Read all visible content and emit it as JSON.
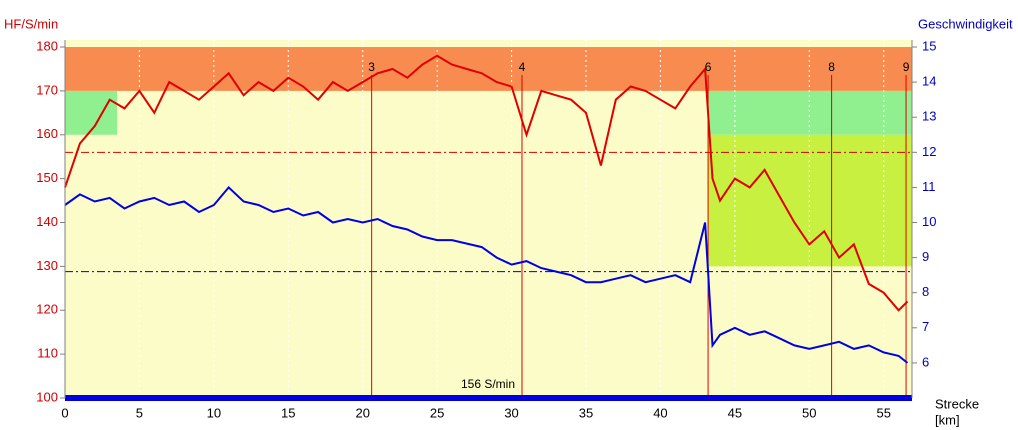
{
  "chart_data": {
    "type": "line",
    "ylabel": "HF/S/min",
    "y2label": "Geschwindigkeit",
    "xlabel": "Strecke",
    "xunit": "[km]",
    "xlim": [
      0,
      56.9
    ],
    "ylim": [
      100,
      181.6
    ],
    "y2lim": [
      5,
      15.2
    ],
    "xticks": [
      0,
      5,
      10,
      15,
      20,
      25,
      30,
      35,
      40,
      45,
      50,
      55
    ],
    "yticks": [
      100,
      110,
      120,
      130,
      140,
      150,
      160,
      170,
      180
    ],
    "y2ticks": [
      6,
      7,
      8,
      9,
      10,
      11,
      12,
      13,
      14,
      15
    ],
    "grid": true,
    "x": [
      0,
      1,
      2,
      3,
      4,
      5,
      6,
      7,
      8,
      9,
      10,
      11,
      12,
      13,
      14,
      15,
      16,
      17,
      18,
      19,
      20,
      21,
      22,
      23,
      24,
      25,
      26,
      27,
      28,
      29,
      30,
      31,
      32,
      33,
      34,
      35,
      36,
      37,
      38,
      39,
      40,
      41,
      42,
      43,
      43.5,
      44,
      45,
      46,
      47,
      48,
      49,
      50,
      51,
      52,
      53,
      54,
      55,
      56,
      56.6
    ],
    "series": [
      {
        "name": "HF",
        "color": "#e00000",
        "axis": "y",
        "values": [
          148,
          158,
          162,
          168,
          166,
          170,
          165,
          172,
          170,
          168,
          171,
          174,
          169,
          172,
          170,
          173,
          171,
          168,
          172,
          170,
          172,
          174,
          175,
          173,
          176,
          178,
          176,
          175,
          174,
          172,
          171,
          160,
          170,
          169,
          168,
          165,
          153,
          168,
          171,
          170,
          168,
          166,
          171,
          175,
          150,
          145,
          150,
          148,
          152,
          146,
          140,
          135,
          138,
          132,
          135,
          126,
          124,
          120,
          122
        ]
      },
      {
        "name": "Geschwindigkeit",
        "color": "#0000e0",
        "axis": "y2",
        "values": [
          10.5,
          10.8,
          10.6,
          10.7,
          10.4,
          10.6,
          10.7,
          10.5,
          10.6,
          10.3,
          10.5,
          11.0,
          10.6,
          10.5,
          10.3,
          10.4,
          10.2,
          10.3,
          10.0,
          10.1,
          10.0,
          10.1,
          9.9,
          9.8,
          9.6,
          9.5,
          9.5,
          9.4,
          9.3,
          9.0,
          8.8,
          8.9,
          8.7,
          8.6,
          8.5,
          8.3,
          8.3,
          8.4,
          8.5,
          8.3,
          8.4,
          8.5,
          8.3,
          10.0,
          6.5,
          6.8,
          7.0,
          6.8,
          6.9,
          6.7,
          6.5,
          6.4,
          6.5,
          6.6,
          6.4,
          6.5,
          6.3,
          6.2,
          6.0
        ]
      }
    ],
    "zones": [
      {
        "x": [
          0,
          56.9
        ],
        "y": [
          170,
          180
        ],
        "color": "#f88c50"
      },
      {
        "x": [
          0,
          3.5
        ],
        "y": [
          160,
          170
        ],
        "color": "#90f090"
      },
      {
        "x": [
          43.2,
          56.9
        ],
        "y": [
          160,
          170
        ],
        "color": "#90f090"
      },
      {
        "x": [
          43.2,
          56.9
        ],
        "y": [
          130,
          160
        ],
        "color": "#c8f040"
      }
    ],
    "hf_reference": {
      "value": 156,
      "label": "156 S/min",
      "color": "#d00000"
    },
    "speed_reference": {
      "value": 8.6,
      "color": "#0000c0"
    },
    "laps": [
      {
        "x": 20.6,
        "label": "3"
      },
      {
        "x": 30.7,
        "label": "4"
      },
      {
        "x": 43.2,
        "label": "6"
      },
      {
        "x": 51.5,
        "label": "8"
      },
      {
        "x": 56.5,
        "label": "9"
      }
    ]
  }
}
